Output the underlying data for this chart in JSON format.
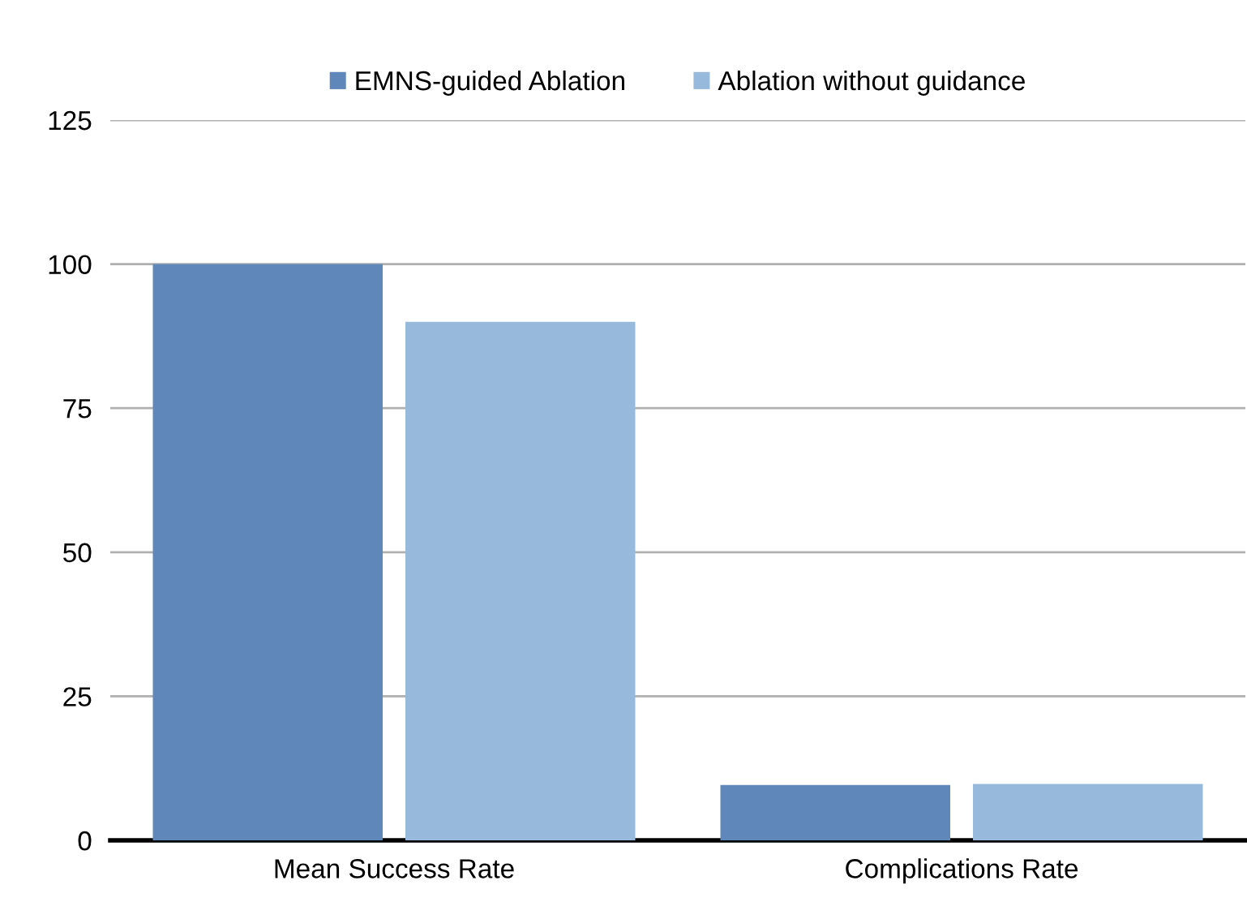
{
  "chart_data": {
    "type": "bar",
    "categories": [
      "Mean Success Rate",
      "Complications Rate"
    ],
    "series": [
      {
        "name": "EMNS-guided Ablation",
        "color": "#5f87b9",
        "values": [
          100,
          9.6
        ]
      },
      {
        "name": "Ablation without guidance",
        "color": "#97b9db",
        "values": [
          90,
          9.8
        ]
      }
    ],
    "ylim": [
      0,
      125
    ],
    "yticks": [
      0,
      25,
      50,
      75,
      100,
      125
    ],
    "grid": "y",
    "legend": "top"
  }
}
